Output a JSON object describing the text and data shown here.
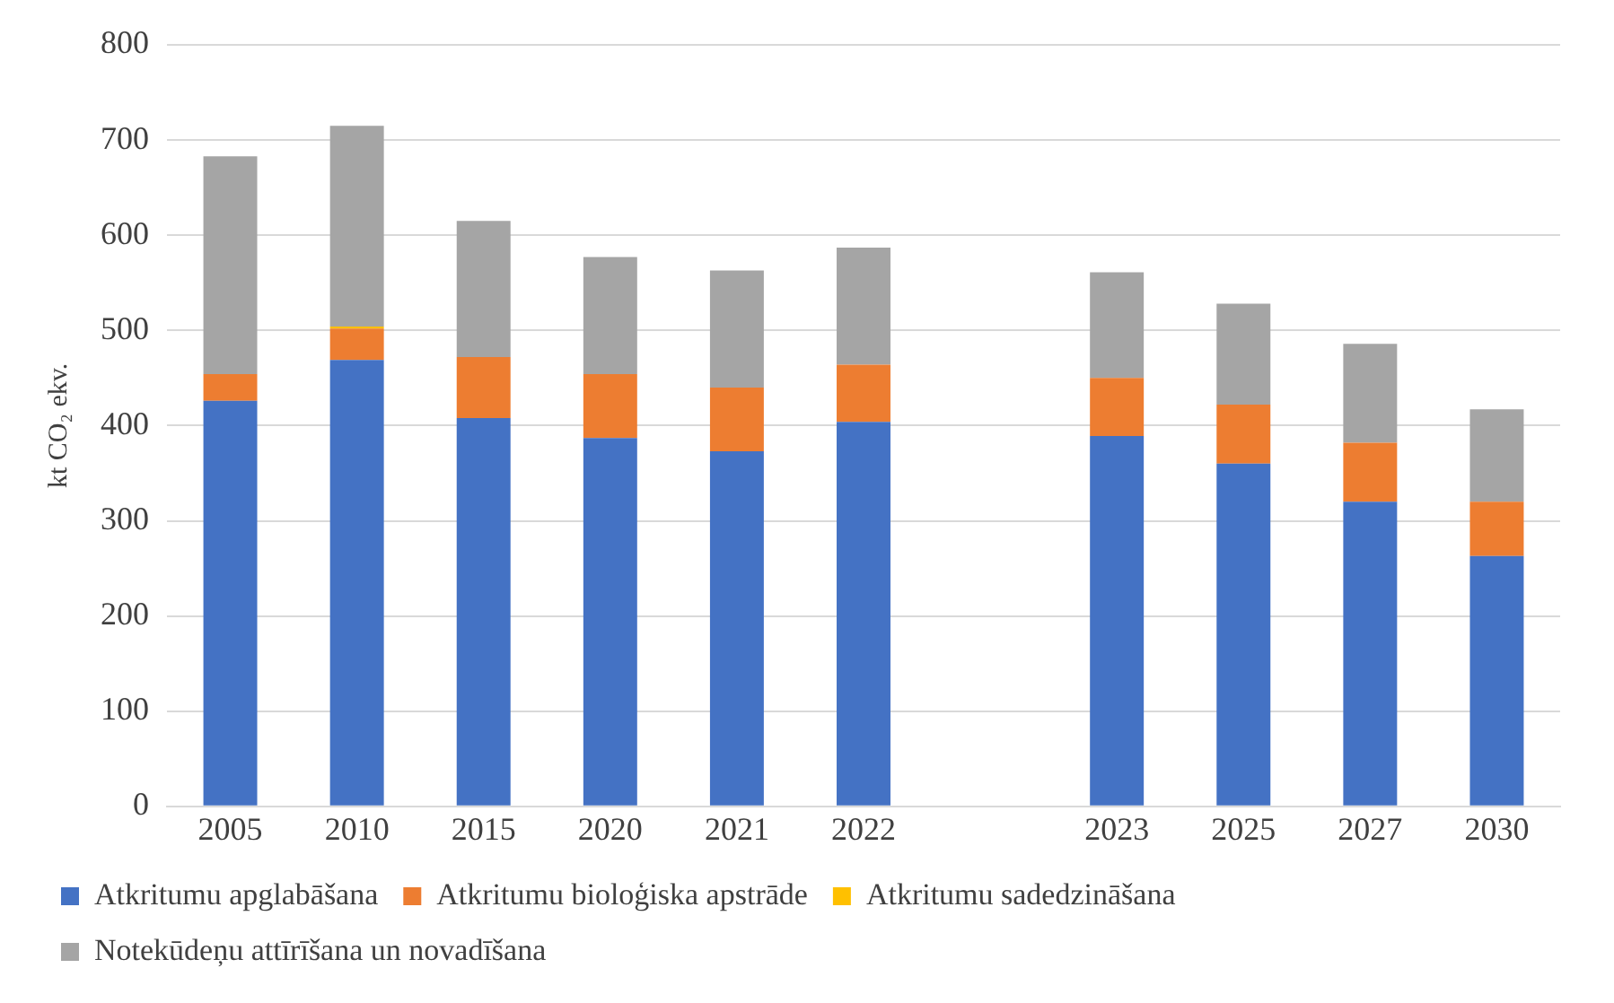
{
  "chart_data": {
    "type": "bar",
    "stacked": true,
    "ylabel": "kt CO₂ ekv.",
    "categories": [
      "2005",
      "2010",
      "2015",
      "2020",
      "2021",
      "2022",
      null,
      "2023",
      "2025",
      "2027",
      "2030"
    ],
    "series": [
      {
        "name": "Atkritumu apglabāšana",
        "color": "#4472c4",
        "values": [
          426,
          469,
          408,
          387,
          373,
          404,
          null,
          389,
          360,
          320,
          263
        ]
      },
      {
        "name": "Atkritumu bioloģiska apstrāde",
        "color": "#ed7d31",
        "values": [
          28,
          33,
          64,
          67,
          67,
          60,
          null,
          61,
          62,
          62,
          57
        ]
      },
      {
        "name": "Atkritumu sadedzināšana",
        "color": "#ffc000",
        "values": [
          0,
          2,
          0,
          0,
          0,
          0,
          null,
          0,
          0,
          0,
          0
        ]
      },
      {
        "name": "Notekūdeņu attīrīšana un novadīšana",
        "color": "#a5a5a5",
        "values": [
          229,
          211,
          143,
          123,
          123,
          123,
          null,
          111,
          106,
          104,
          97
        ]
      }
    ],
    "ylim": [
      0,
      800
    ],
    "yticks": [
      0,
      100,
      200,
      300,
      400,
      500,
      600,
      700,
      800
    ],
    "grid": "y",
    "legend": "bottom"
  }
}
